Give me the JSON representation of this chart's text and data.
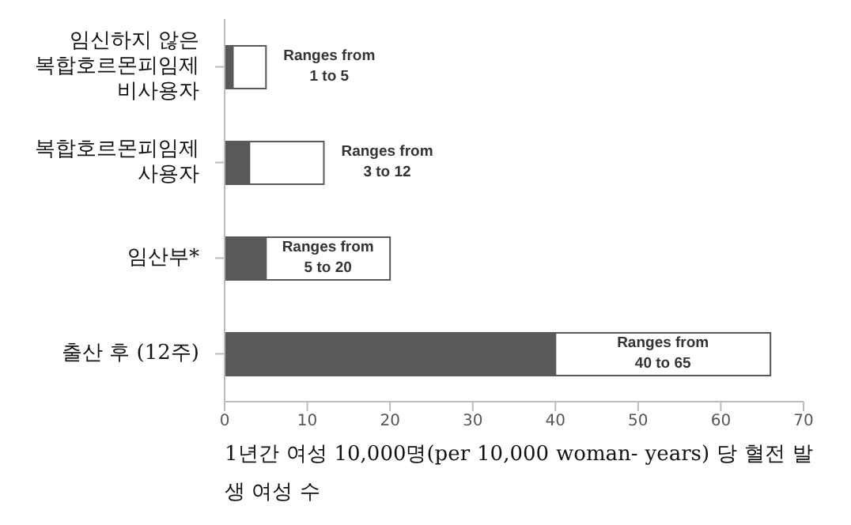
{
  "chart_data": {
    "type": "bar",
    "orientation": "horizontal",
    "stacked": true,
    "categories": [
      "임신하지 않은 복합호르몬피임제 비사용자",
      "복합호르몬피임제 사용자",
      "임산부*",
      "출산 후 (12주)"
    ],
    "series": [
      {
        "color": "#595959",
        "values": [
          1,
          3,
          5,
          40
        ]
      },
      {
        "color": "#ffffff",
        "values": [
          4,
          9,
          15,
          26
        ]
      }
    ],
    "xlim": [
      0,
      70
    ],
    "xticks": [
      0,
      10,
      20,
      30,
      40,
      50,
      60,
      70
    ],
    "xlabel": "1년간 여성 10,000명(per 10,000 woman- years) 당 혈전 발생 여성 수",
    "annotations": [
      "Ranges from 1 to 5",
      "Ranges from 3 to 12",
      "Ranges from 5 to 20",
      "Ranges from 40 to 65"
    ],
    "grid": false,
    "legend": false
  }
}
